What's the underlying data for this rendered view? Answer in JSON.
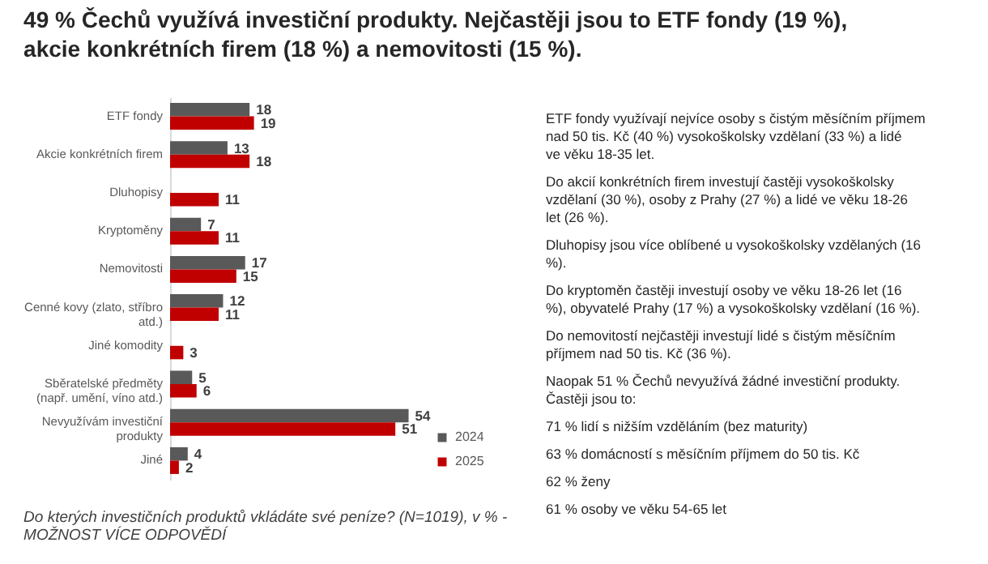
{
  "chart_data": [
    {
      "type": "bar",
      "orientation": "horizontal",
      "title": "49 % Čechů využívá investiční produkty. Nejčastěji jsou to ETF fondy (19 %), akcie konkrétních firem (18 %) a nemovitosti (15 %).",
      "categories": [
        "ETF fondy",
        "Akcie konkrétních firem",
        "Dluhopisy",
        "Kryptoměny",
        "Nemovitosti",
        "Cenné kovy (zlato, stříbro atd.)",
        "Jiné komodity",
        "Sběratelské předměty (např. umění, víno atd.)",
        "Nevyužívám investiční produkty",
        "Jiné"
      ],
      "series": [
        {
          "name": "2024",
          "color": "#595959",
          "values": [
            18,
            13,
            null,
            7,
            17,
            12,
            null,
            5,
            54,
            4
          ]
        },
        {
          "name": "2025",
          "color": "#c00000",
          "values": [
            19,
            18,
            11,
            11,
            15,
            11,
            3,
            6,
            51,
            2
          ]
        }
      ],
      "data_labels": true,
      "legend": "bottom right",
      "tick_labels": "y",
      "annotations": [
        "Do kterých investičních produktů vkládáte své peníze? (N=1019), v % - MOŽNOST VÍCE ODPOVĚDÍ"
      ]
    },
    {
      "type": "other",
      "annotations": [
        "ETF fondy využívají nejvíce osoby s čistým měsíčním příjmem nad 50 tis. Kč (40 %) vysokoškolsky vzdělaní (33 %) a lidé ve věku 18-35 let.",
        "Do akcií konkrétních firem investují častěji vysokoškolsky vzdělaní (30 %), osoby z Prahy (27 %) a lidé ve věku 18-26 let (26 %).",
        "Dluhopisy jsou více oblíbené u vysokoškolsky vzdělaných (16 %).",
        "Do kryptoměn častěji investují osoby ve věku 18-26 let (16 %), obyvatelé Prahy (17 %) a vysokoškolsky vzdělaní (16 %).",
        "Do nemovitostí nejčastěji investují lidé s čistým měsíčním příjmem nad 50 tis. Kč (36 %).",
        "Naopak 51 % Čechů nevyužívá žádné investiční produkty. Častěji jsou to:",
        "71 % lidí s nižším vzděláním (bez maturity)",
        "63 % domácností s měsíčním příjmem do 50 tis. Kč",
        "62 % ženy",
        "61 % osoby ve věku 54-65 let"
      ]
    }
  ]
}
